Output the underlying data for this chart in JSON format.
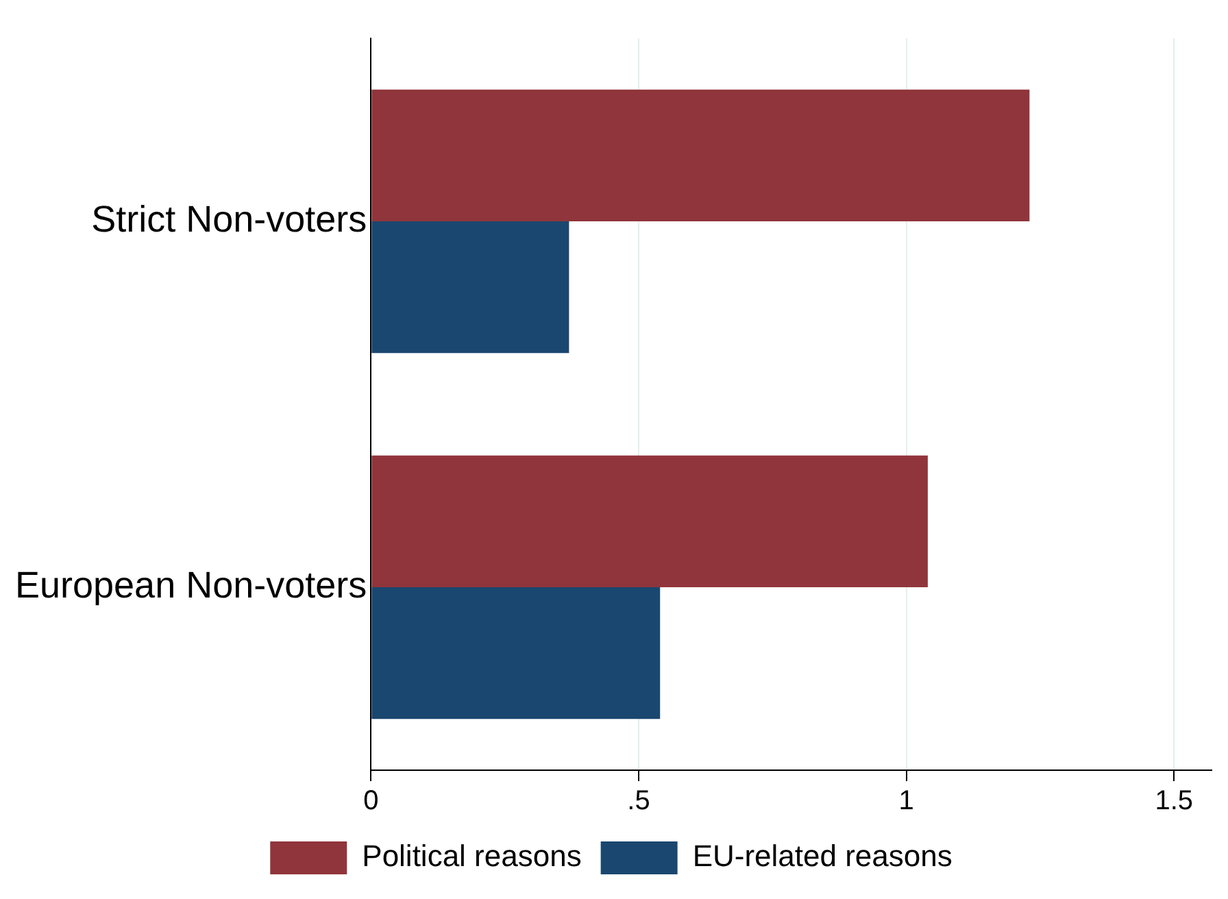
{
  "chart_data": {
    "type": "bar",
    "orientation": "horizontal",
    "categories": [
      "Strict Non-voters",
      "European Non-voters"
    ],
    "series": [
      {
        "name": "Political reasons",
        "color": "#90353b",
        "values": [
          1.23,
          1.04
        ]
      },
      {
        "name": "EU-related reasons",
        "color": "#1a476f",
        "values": [
          0.37,
          0.54
        ]
      }
    ],
    "xlim": [
      0,
      1.57
    ],
    "xticks": [
      0,
      {
        "value": 0.5,
        "label": ".5"
      },
      1,
      1.5
    ],
    "grid": "x",
    "legend": "bottom"
  }
}
